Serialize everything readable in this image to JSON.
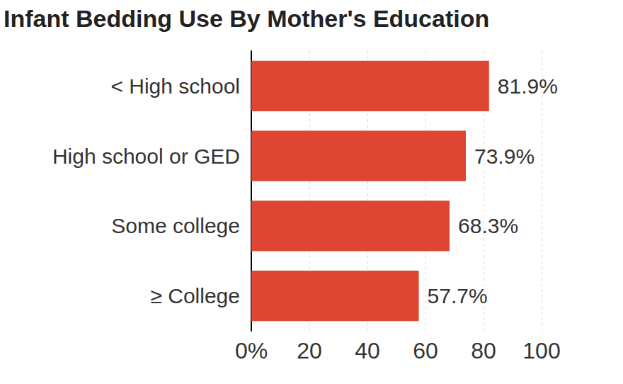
{
  "chart_data": {
    "type": "bar",
    "orientation": "horizontal",
    "title": "Infant Bedding Use By Mother's Education",
    "categories": [
      "< High school",
      "High school or GED",
      "Some college",
      "≥ College"
    ],
    "values": [
      81.9,
      73.9,
      68.3,
      57.7
    ],
    "value_labels": [
      "81.9%",
      "73.9%",
      "68.3%",
      "57.7%"
    ],
    "color": "#dc4632",
    "xlim": [
      0,
      100
    ],
    "xticks": [
      {
        "value": 0,
        "label": "0%"
      },
      20,
      40,
      60,
      80,
      100
    ],
    "grid": true,
    "data_labels": true
  }
}
